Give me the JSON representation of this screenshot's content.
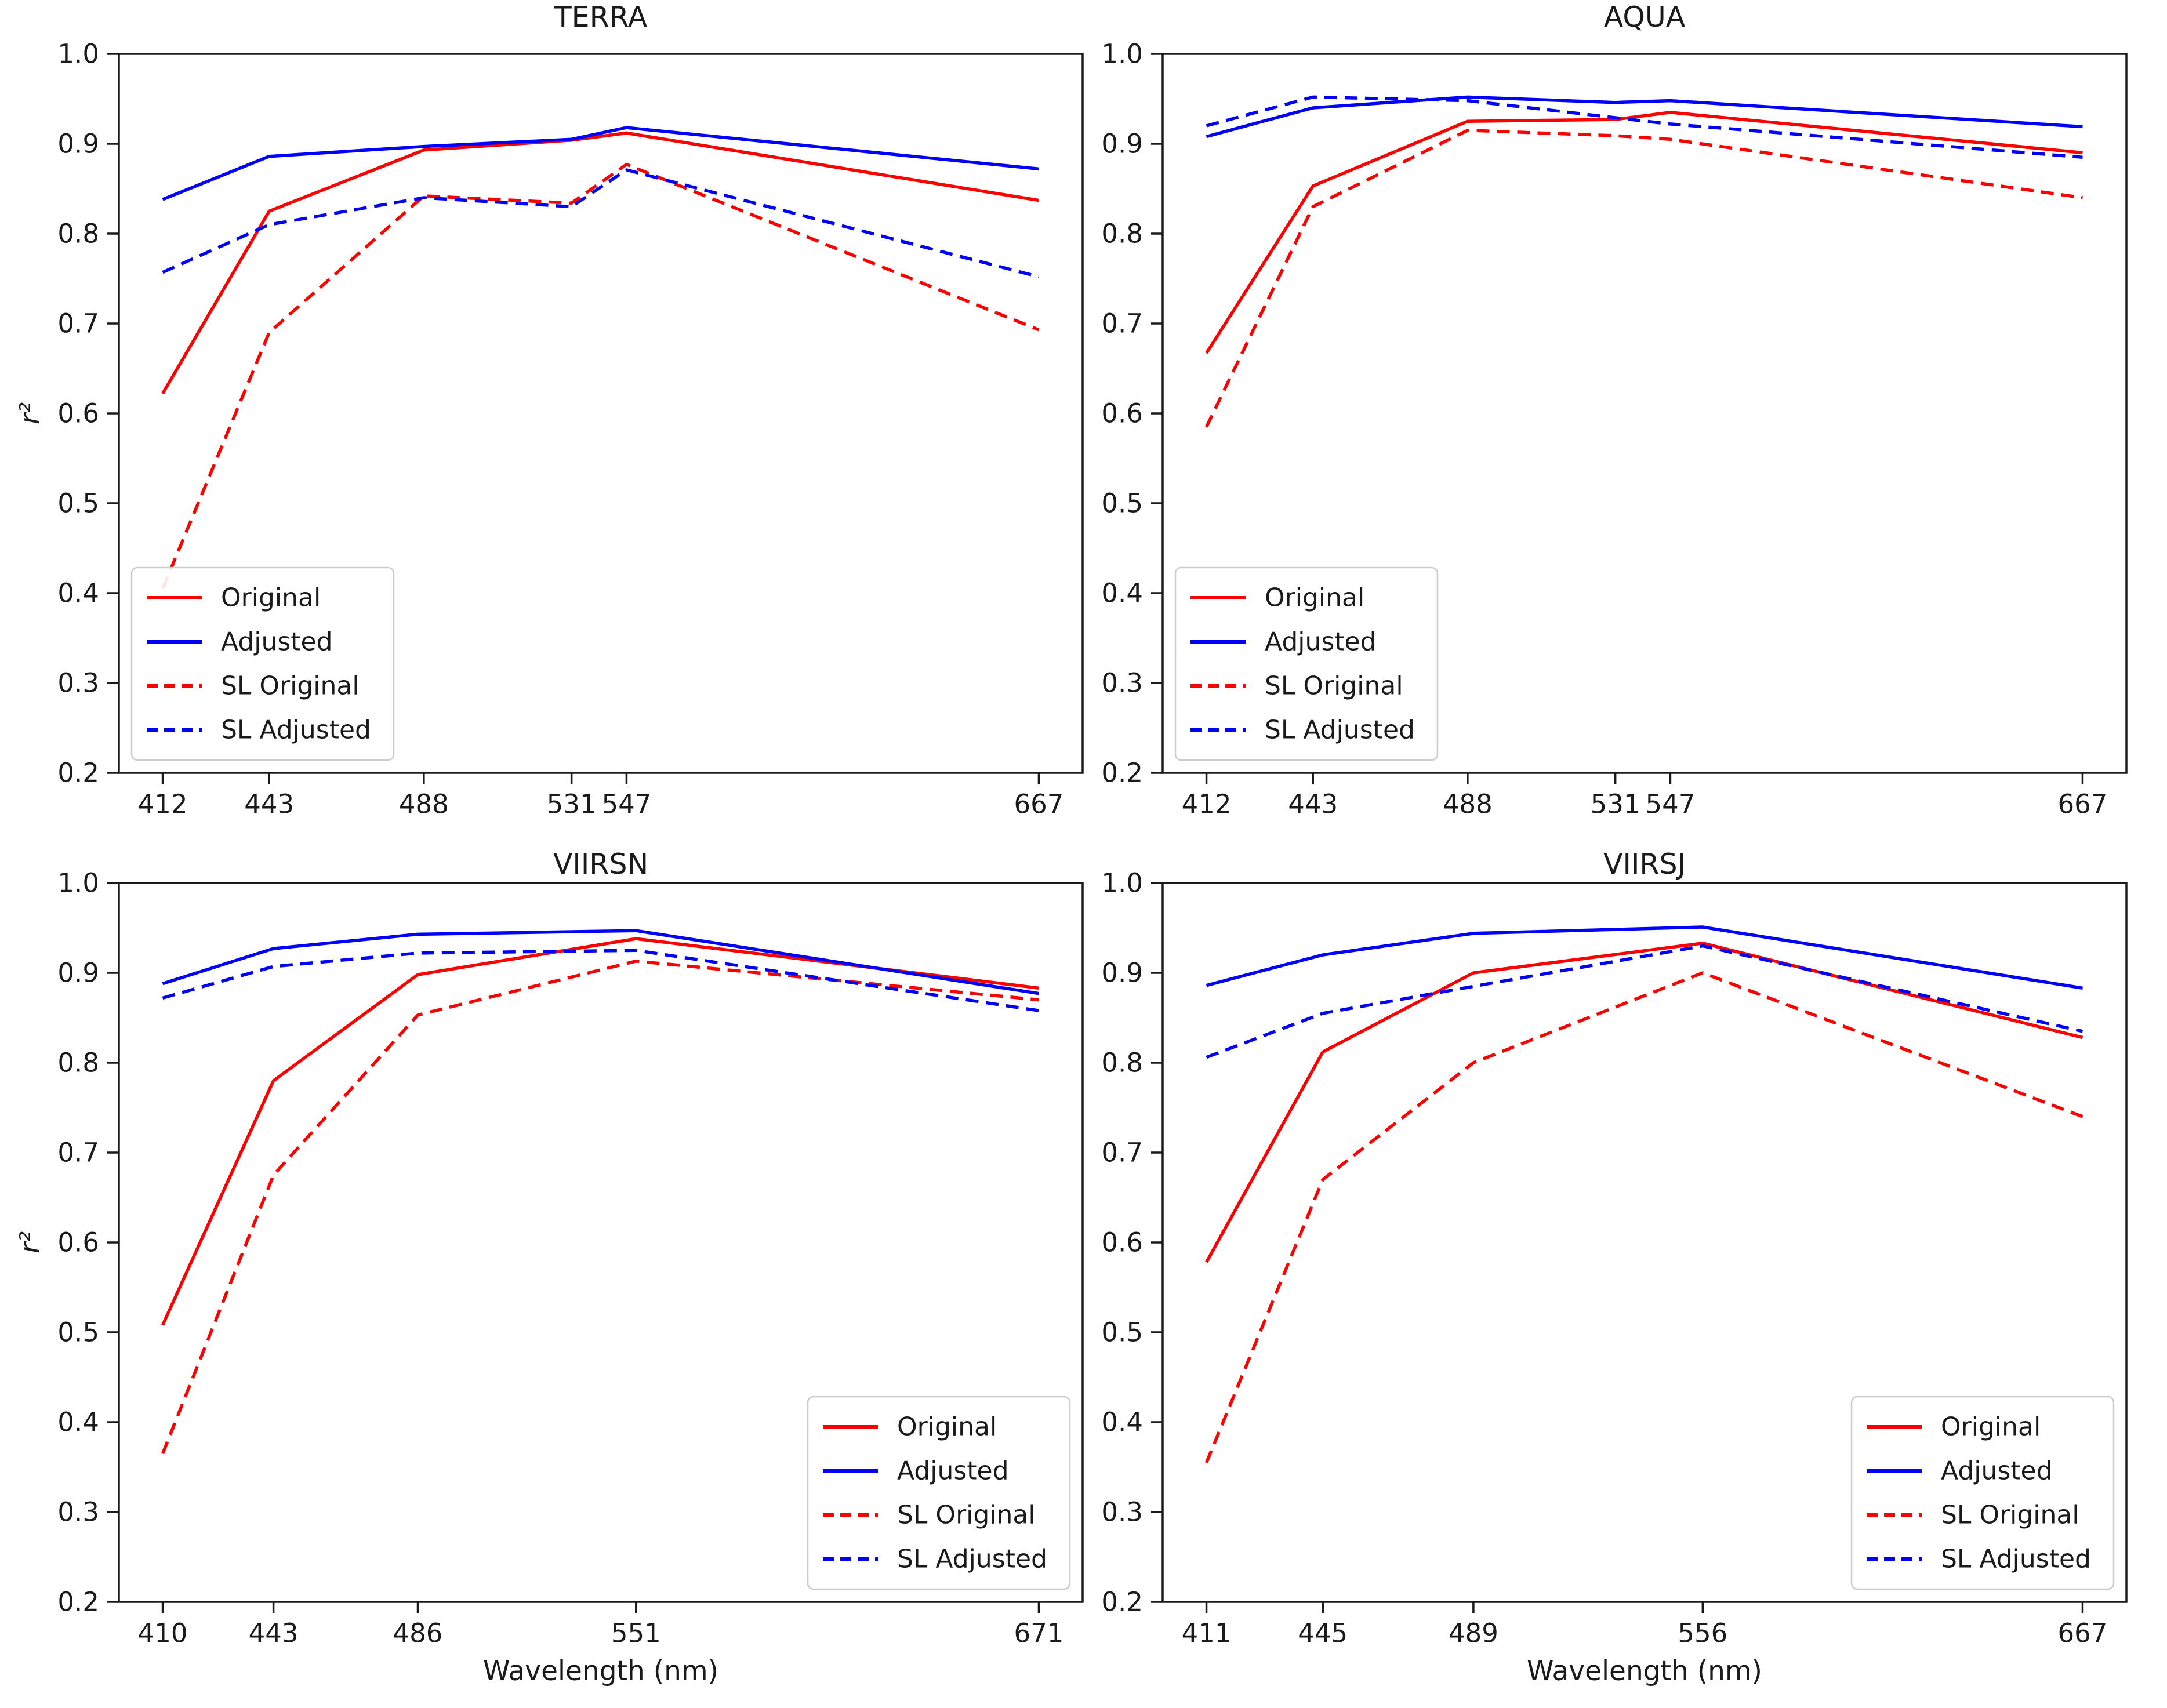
{
  "figure": {
    "xlabel": "Wavelength (nm)",
    "ylabel": "r²"
  },
  "colors": {
    "red": "#ff0000",
    "blue": "#0000ff",
    "axis": "#1a1a1a",
    "legend_border": "#cccccc"
  },
  "chart_data": [
    {
      "type": "line",
      "title": "TERRA",
      "xlabel": "",
      "ylabel": "r²",
      "x": [
        412,
        443,
        488,
        531,
        547,
        667
      ],
      "xtick_labels": [
        "412",
        "443",
        "488",
        "531",
        "547",
        "667"
      ],
      "ylim": [
        0.2,
        1.0
      ],
      "yticks": [
        0.2,
        0.3,
        0.4,
        0.5,
        0.6,
        0.7,
        0.8,
        0.9,
        1.0
      ],
      "grid": false,
      "legend_loc": "lower left",
      "series": [
        {
          "name": "Original",
          "color": "red",
          "style": "solid",
          "values": [
            0.622,
            0.825,
            0.893,
            0.904,
            0.912,
            0.837
          ]
        },
        {
          "name": "Adjusted",
          "color": "blue",
          "style": "solid",
          "values": [
            0.838,
            0.886,
            0.897,
            0.905,
            0.918,
            0.872
          ]
        },
        {
          "name": "SL Original",
          "color": "red",
          "style": "dashed",
          "values": [
            0.405,
            0.69,
            0.842,
            0.834,
            0.877,
            0.693
          ]
        },
        {
          "name": "SL Adjusted",
          "color": "blue",
          "style": "dashed",
          "values": [
            0.757,
            0.81,
            0.84,
            0.83,
            0.871,
            0.752
          ]
        }
      ]
    },
    {
      "type": "line",
      "title": "AQUA",
      "xlabel": "",
      "ylabel": "",
      "x": [
        412,
        443,
        488,
        531,
        547,
        667
      ],
      "xtick_labels": [
        "412",
        "443",
        "488",
        "531",
        "547",
        "667"
      ],
      "ylim": [
        0.2,
        1.0
      ],
      "yticks": [
        0.2,
        0.3,
        0.4,
        0.5,
        0.6,
        0.7,
        0.8,
        0.9,
        1.0
      ],
      "grid": false,
      "legend_loc": "lower left",
      "series": [
        {
          "name": "Original",
          "color": "red",
          "style": "solid",
          "values": [
            0.667,
            0.853,
            0.925,
            0.927,
            0.935,
            0.89
          ]
        },
        {
          "name": "Adjusted",
          "color": "blue",
          "style": "solid",
          "values": [
            0.908,
            0.94,
            0.952,
            0.946,
            0.948,
            0.919
          ]
        },
        {
          "name": "SL Original",
          "color": "red",
          "style": "dashed",
          "values": [
            0.585,
            0.83,
            0.915,
            0.909,
            0.905,
            0.84
          ]
        },
        {
          "name": "SL Adjusted",
          "color": "blue",
          "style": "dashed",
          "values": [
            0.92,
            0.952,
            0.948,
            0.929,
            0.922,
            0.885
          ]
        }
      ]
    },
    {
      "type": "line",
      "title": "VIIRSN",
      "xlabel": "Wavelength (nm)",
      "ylabel": "r²",
      "x": [
        410,
        443,
        486,
        551,
        671
      ],
      "xtick_labels": [
        "410",
        "443",
        "486",
        "551",
        "671"
      ],
      "ylim": [
        0.2,
        1.0
      ],
      "yticks": [
        0.2,
        0.3,
        0.4,
        0.5,
        0.6,
        0.7,
        0.8,
        0.9,
        1.0
      ],
      "grid": false,
      "legend_loc": "lower right",
      "series": [
        {
          "name": "Original",
          "color": "red",
          "style": "solid",
          "values": [
            0.508,
            0.78,
            0.898,
            0.938,
            0.883
          ]
        },
        {
          "name": "Adjusted",
          "color": "blue",
          "style": "solid",
          "values": [
            0.888,
            0.927,
            0.943,
            0.947,
            0.877
          ]
        },
        {
          "name": "SL Original",
          "color": "red",
          "style": "dashed",
          "values": [
            0.365,
            0.675,
            0.853,
            0.913,
            0.87
          ]
        },
        {
          "name": "SL Adjusted",
          "color": "blue",
          "style": "dashed",
          "values": [
            0.872,
            0.907,
            0.922,
            0.925,
            0.858
          ]
        }
      ]
    },
    {
      "type": "line",
      "title": "VIIRSJ",
      "xlabel": "Wavelength (nm)",
      "ylabel": "",
      "x": [
        411,
        445,
        489,
        556,
        667
      ],
      "xtick_labels": [
        "411",
        "445",
        "489",
        "556",
        "667"
      ],
      "ylim": [
        0.2,
        1.0
      ],
      "yticks": [
        0.2,
        0.3,
        0.4,
        0.5,
        0.6,
        0.7,
        0.8,
        0.9,
        1.0
      ],
      "grid": false,
      "legend_loc": "lower right",
      "series": [
        {
          "name": "Original",
          "color": "red",
          "style": "solid",
          "values": [
            0.578,
            0.812,
            0.9,
            0.933,
            0.828
          ]
        },
        {
          "name": "Adjusted",
          "color": "blue",
          "style": "solid",
          "values": [
            0.886,
            0.92,
            0.944,
            0.951,
            0.883
          ]
        },
        {
          "name": "SL Original",
          "color": "red",
          "style": "dashed",
          "values": [
            0.355,
            0.67,
            0.8,
            0.9,
            0.74
          ]
        },
        {
          "name": "SL Adjusted",
          "color": "blue",
          "style": "dashed",
          "values": [
            0.806,
            0.855,
            0.885,
            0.93,
            0.835
          ]
        }
      ]
    }
  ]
}
